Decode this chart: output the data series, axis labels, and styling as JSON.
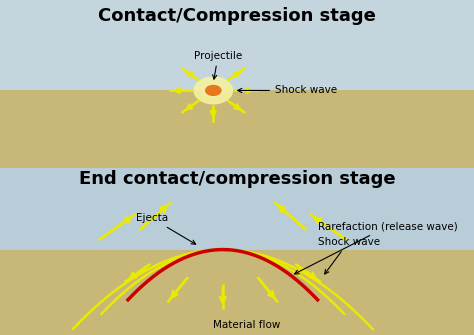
{
  "title1": "Contact/Compression stage",
  "title2": "End contact/compression stage",
  "bg_color": "#ffffff",
  "sky_color_top": "#c5d5de",
  "sky_color_bottom": "#b8cdd8",
  "ground_color": "#c8b878",
  "projectile_color": "#e87820",
  "projectile_outline": "#f5f0a0",
  "arrow_color": "#eaea00",
  "shock_wave_label1": "Shock wave",
  "projectile_label": "Projectile",
  "ejecta_label": "Ejecta",
  "rarefaction_label": "Rarefaction (release wave)",
  "shock_wave_label2": "Shock wave",
  "material_flow_label": "Material flow",
  "rarefaction_color": "#cc0000",
  "shock_wave_color": "#eaea00",
  "title_fontsize": 13,
  "label_fontsize": 7.5
}
